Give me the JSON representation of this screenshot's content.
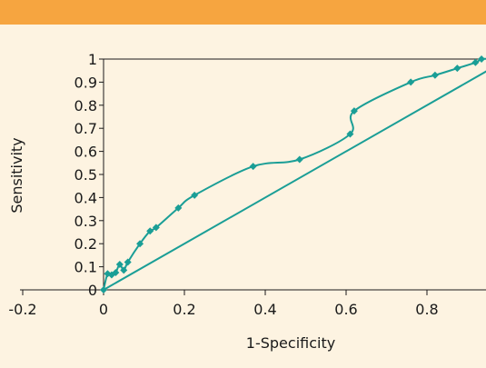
{
  "colors": {
    "background": "#fdf3e1",
    "top_bar": "#f6a540",
    "series": "#1a9e96",
    "axis": "#1a1a1a"
  },
  "chart_data": {
    "type": "line",
    "xlabel": "1-Specificity",
    "ylabel": "Sensitivity",
    "xlim": [
      -0.2,
      0.97
    ],
    "ylim": [
      0,
      1
    ],
    "x_ticks": [
      -0.2,
      0,
      0.2,
      0.4,
      0.6,
      0.8
    ],
    "x_tick_labels": [
      "-0.2",
      "0",
      "0.2",
      "0.4",
      "0.6",
      "0.8"
    ],
    "y_ticks": [
      0,
      0.1,
      0.2,
      0.3,
      0.4,
      0.5,
      0.6,
      0.7,
      0.8,
      0.9,
      1
    ],
    "y_tick_labels": [
      "0",
      "0.1",
      "0.2",
      "0.3",
      "0.4",
      "0.5",
      "0.6",
      "0.7",
      "0.8",
      "0.9",
      "1"
    ],
    "grid": false,
    "legend": "none",
    "series": [
      {
        "marker": "diamond",
        "smooth": true,
        "x": [
          0,
          0.01,
          0.02,
          0.03,
          0.04,
          0.05,
          0.06,
          0.09,
          0.115,
          0.13,
          0.185,
          0.225,
          0.37,
          0.485,
          0.61,
          0.62,
          0.76,
          0.82,
          0.875,
          0.92,
          0.935,
          0.955,
          0.975
        ],
        "y": [
          0,
          0.07,
          0.065,
          0.075,
          0.11,
          0.085,
          0.12,
          0.2,
          0.255,
          0.27,
          0.355,
          0.41,
          0.535,
          0.565,
          0.675,
          0.775,
          0.9,
          0.93,
          0.96,
          0.985,
          1.0,
          1.0,
          1.0
        ]
      },
      {
        "marker": "none",
        "smooth": false,
        "x": [
          0,
          0.975
        ],
        "y": [
          0,
          0.975
        ]
      }
    ]
  }
}
